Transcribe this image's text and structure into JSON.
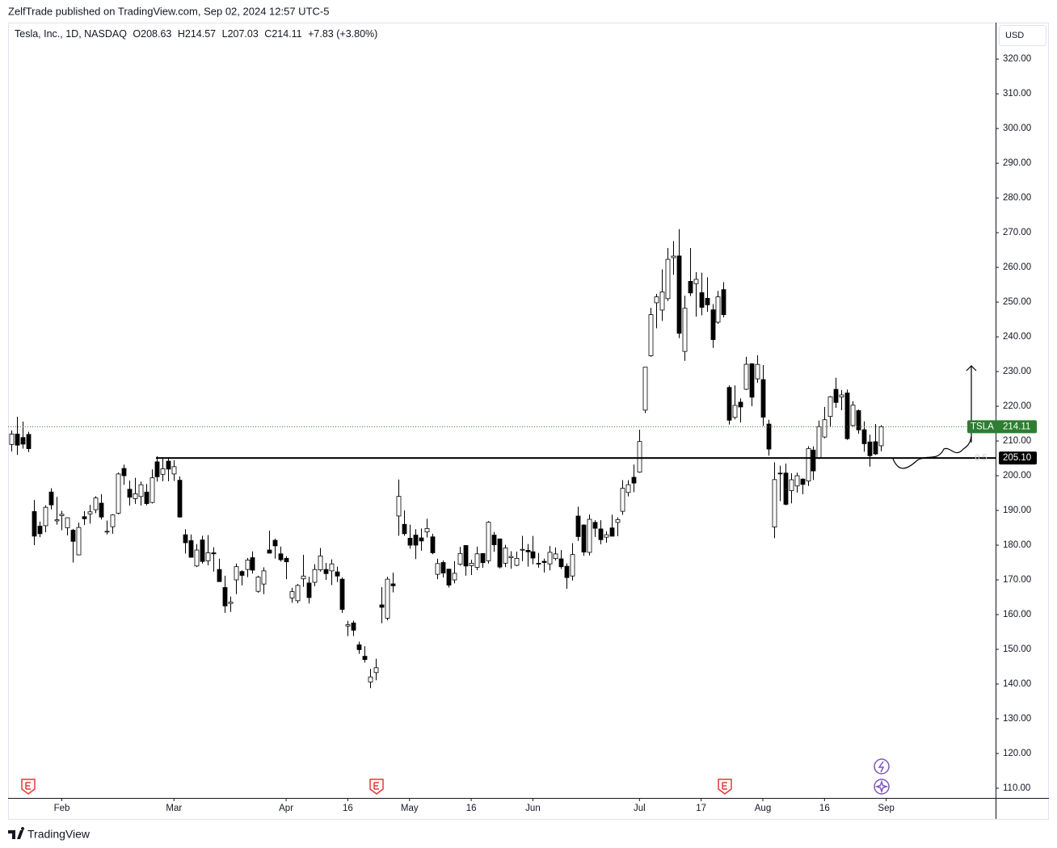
{
  "chart_data": {
    "type": "candlestick",
    "published": "ZelfTrade published on TradingView.com, Sep 02, 2024 12:57 UTC-5",
    "symbol_title": "Tesla, Inc., 1D, NASDAQ",
    "ohlc_legend": [
      {
        "label": "O",
        "value": "208.63"
      },
      {
        "label": "H",
        "value": "214.57"
      },
      {
        "label": "L",
        "value": "207.03"
      },
      {
        "label": "C",
        "value": "214.11"
      }
    ],
    "change": "+7.83 (+3.80%)",
    "currency": "USD",
    "brand": "TradingView",
    "open": [
      209,
      212,
      211,
      211.9,
      189.7,
      185.5,
      185.6,
      195.3,
      187,
      188.5,
      185,
      184.3,
      177.2,
      188.2,
      189,
      190.2,
      192.1,
      183.9,
      185.3,
      189.2,
      202.1,
      196.1,
      193.4,
      194,
      195.3,
      192.3,
      204,
      200.4,
      204.2,
      200.5,
      198.7,
      183,
      181.3,
      174,
      181.5,
      175.5,
      177.8,
      173,
      167.8,
      163.2,
      170,
      172.4,
      173,
      176.4,
      166.7,
      168.8,
      178.6,
      181.4,
      177.5,
      176.2,
      164.8,
      164,
      170.3,
      169.1,
      169.3,
      172.9,
      173,
      172.6,
      172.3,
      170.2,
      156.7,
      157.6,
      151.3,
      148,
      140.6,
      143.3,
      162.8,
      158.96,
      168.85,
      188.4,
      186,
      182,
      182.9,
      182.1,
      183.8,
      182.4,
      171.6,
      175,
      173.1,
      170,
      174.5,
      179.9,
      174.1,
      173.6,
      177.6,
      175.5,
      182.9,
      181.8,
      174.8,
      176.4,
      174.2,
      178.6,
      178.5,
      178.1,
      174.78,
      175.35,
      174.6,
      176.13,
      176.06,
      173.92,
      171.12,
      188.39,
      185.8,
      177.92,
      186.56,
      184.68,
      182.3,
      184.97,
      186.54,
      189.75,
      195.17,
      199.55,
      201.02,
      218.89,
      234.56,
      249.81,
      247.71,
      251,
      262.8,
      263.3,
      235.8,
      255.97,
      255.31,
      252.73,
      251.09,
      247.79,
      244.21,
      253.6,
      225.42,
      216.8,
      221.19,
      224.9,
      232.25,
      227.9,
      227.69,
      214.88,
      185.22,
      200.75,
      200.77,
      195.7,
      197.05,
      199.02,
      198.47,
      207.39,
      205.02,
      211.15,
      217.07,
      224.88,
      222.67,
      223.82,
      214.46,
      218.75,
      213.25,
      209.72,
      209.8,
      208.63
    ],
    "high": [
      213,
      217,
      215.6,
      212.7,
      193,
      186.8,
      191.5,
      196.4,
      193.9,
      189.9,
      187.3,
      184.7,
      186.5,
      189.8,
      191.6,
      194.1,
      194.7,
      187.1,
      188.9,
      200.9,
      203.2,
      198.6,
      199.4,
      198.3,
      197.6,
      201.8,
      205.6,
      205.3,
      205.3,
      204.5,
      199.8,
      184.6,
      183.1,
      180.3,
      182.7,
      182.9,
      179.4,
      176.1,
      171.2,
      165.2,
      174.7,
      172.8,
      176.3,
      178.2,
      171.2,
      173.6,
      184.2,
      181.9,
      179.6,
      176.8,
      167.7,
      168.8,
      177.2,
      170.9,
      174.5,
      179.2,
      174.9,
      175.9,
      173.8,
      170.7,
      158.2,
      158.3,
      152.2,
      150.9,
      144.4,
      147.3,
      167.9,
      170.9,
      172.1,
      198.9,
      190,
      185.9,
      184.6,
      184.8,
      187.6,
      183.3,
      176.1,
      175.6,
      173.1,
      175.4,
      179.5,
      179.99,
      175.8,
      179.6,
      177.6,
      186.9,
      183.8,
      181.9,
      180.1,
      178.25,
      178.15,
      182.67,
      180.32,
      182.64,
      177.76,
      176.15,
      179.73,
      179.35,
      178.57,
      174.75,
      180.55,
      191.08,
      186,
      188.81,
      187.2,
      187.2,
      183.95,
      188.8,
      188,
      198.72,
      198.72,
      203.2,
      213.23,
      231.3,
      248.35,
      252.37,
      259.44,
      265.61,
      267.59,
      271,
      251.84,
      265.6,
      258.62,
      258.47,
      257.14,
      249.44,
      253.21,
      255.76,
      225.99,
      226,
      222.28,
      234.27,
      232.41,
      234.68,
      231.87,
      216.13,
      203.88,
      202.9,
      203.49,
      200.7,
      200.88,
      199.26,
      208.49,
      208.44,
      215.88,
      219.8,
      222.98,
      228.22,
      224.66,
      224.8,
      221.48,
      219.09,
      215.66,
      211.84,
      214.89,
      214.57
    ],
    "low": [
      207,
      206,
      207.8,
      206.8,
      180,
      182.3,
      183.7,
      190.3,
      185.9,
      184.3,
      182.8,
      175,
      177.1,
      185.8,
      186.2,
      189.2,
      187.4,
      183.1,
      183.3,
      188.9,
      197.4,
      191.4,
      191.9,
      191.4,
      191.5,
      192,
      198.3,
      198.4,
      198.4,
      198.5,
      187.9,
      177.6,
      176.5,
      173.7,
      174.7,
      174.2,
      172.4,
      169.5,
      160.5,
      160.8,
      165.9,
      168.4,
      170.8,
      171.8,
      166.3,
      165.9,
      177.6,
      176.1,
      175.3,
      170.2,
      163.4,
      163.3,
      168,
      163.2,
      168.2,
      172.4,
      170,
      168.5,
      169.4,
      160.5,
      153.8,
      153.8,
      148.7,
      146.2,
      138.8,
      141.1,
      157.5,
      158.4,
      166.4,
      182.7,
      182.7,
      179,
      176,
      178.4,
      182.2,
      177.4,
      170.2,
      170.7,
      167.8,
      169,
      174.1,
      171.2,
      171.4,
      172.8,
      173.5,
      174.7,
      178.1,
      173.3,
      173.7,
      173.2,
      173.93,
      175.38,
      173.82,
      174.49,
      173.52,
      172.13,
      172.73,
      175.58,
      173.17,
      167.41,
      169.8,
      181.23,
      176.92,
      177,
      182.37,
      180.28,
      180.69,
      182.55,
      182.6,
      188.77,
      194.05,
      195.26,
      200.85,
      218.06,
      234.25,
      242.46,
      244.57,
      250.3,
      257.86,
      239.65,
      233.09,
      251.73,
      245.8,
      246.18,
      247.2,
      236.83,
      243.75,
      245.63,
      214.71,
      216.23,
      215.33,
      224.7,
      220,
      226.79,
      214.33,
      205.78,
      182,
      192.67,
      191.48,
      192.04,
      195.11,
      194.67,
      197.06,
      198.75,
      204.82,
      210.8,
      214.09,
      219.56,
      218.86,
      210.32,
      214.21,
      212.11,
      206.94,
      202.59,
      205.97,
      207.03
    ],
    "close": [
      212,
      208.8,
      209.1,
      207.8,
      182.6,
      183.3,
      190.9,
      191.6,
      187.3,
      188.9,
      187.9,
      181.1,
      185.1,
      187.6,
      189.6,
      193.6,
      188.1,
      184,
      188.7,
      200.5,
      200,
      193.8,
      194.8,
      197.4,
      191.97,
      199.4,
      199.7,
      202,
      201.9,
      202.6,
      188.1,
      180.7,
      176.5,
      178.6,
      175.3,
      177.8,
      177.5,
      169.5,
      162.5,
      163.6,
      173.8,
      171.3,
      175.7,
      172.8,
      170.8,
      172.6,
      177.7,
      179.8,
      175.8,
      175.2,
      166.6,
      168.4,
      171.1,
      164.9,
      172.98,
      176.9,
      171.8,
      174.6,
      171.1,
      161.5,
      157.1,
      155.5,
      149.9,
      147.05,
      142.05,
      144.7,
      162.1,
      170.2,
      168.3,
      194.05,
      183.3,
      179.99,
      180,
      181.2,
      184.8,
      177.8,
      174.7,
      171.97,
      168.5,
      171.9,
      177.6,
      173.99,
      174.8,
      177.5,
      174.95,
      186.6,
      180.1,
      173.7,
      179.2,
      176.75,
      176.19,
      178.79,
      178.08,
      176.29,
      174.77,
      175,
      177.94,
      177.48,
      173.79,
      170.66,
      177.29,
      182.47,
      178.01,
      187.44,
      184.86,
      181.57,
      183.01,
      182.58,
      187.35,
      196.37,
      197.42,
      197.88,
      209.86,
      231.26,
      246.39,
      251.52,
      252.94,
      262.33,
      263.26,
      241.03,
      248.23,
      252.64,
      256.56,
      248.5,
      249.23,
      239.2,
      251.51,
      246.38,
      215.99,
      220.25,
      219.8,
      232.1,
      222.62,
      232.07,
      216.86,
      207.67,
      198.88,
      200.64,
      191.76,
      198.84,
      200,
      197.49,
      207.83,
      201.38,
      214.14,
      216.12,
      222.72,
      221.1,
      223.27,
      210.66,
      220.32,
      213.21,
      209.21,
      205.75,
      206.28,
      214.11
    ],
    "up_color": "#ffffff",
    "down_color": "#000000",
    "outline_color": "#000000",
    "ylim": [
      107.2,
      330.5
    ],
    "yticks": [
      {
        "value": 110,
        "label": "110.00"
      },
      {
        "value": 120,
        "label": "120.00"
      },
      {
        "value": 130,
        "label": "130.00"
      },
      {
        "value": 140,
        "label": "140.00"
      },
      {
        "value": 150,
        "label": "150.00"
      },
      {
        "value": 160,
        "label": "160.00"
      },
      {
        "value": 170,
        "label": "170.00"
      },
      {
        "value": 180,
        "label": "180.00"
      },
      {
        "value": 190,
        "label": "190.00"
      },
      {
        "value": 200,
        "label": "200.00"
      },
      {
        "value": 210,
        "label": "210.00"
      },
      {
        "value": 220,
        "label": "220.00"
      },
      {
        "value": 230,
        "label": "230.00"
      },
      {
        "value": 240,
        "label": "240.00"
      },
      {
        "value": 250,
        "label": "250.00"
      },
      {
        "value": 260,
        "label": "260.00"
      },
      {
        "value": 270,
        "label": "270.00"
      },
      {
        "value": 280,
        "label": "280.00"
      },
      {
        "value": 290,
        "label": "290.00"
      },
      {
        "value": 300,
        "label": "300.00"
      },
      {
        "value": 310,
        "label": "310.00"
      },
      {
        "value": 320,
        "label": "320.00"
      }
    ],
    "xlim": [
      -0.58,
      175.5
    ],
    "xticks": [
      {
        "value": 9,
        "label": "Feb"
      },
      {
        "value": 29,
        "label": "Mar"
      },
      {
        "value": 49,
        "label": "Apr"
      },
      {
        "value": 60,
        "label": "16"
      },
      {
        "value": 71,
        "label": "May"
      },
      {
        "value": 82,
        "label": "16"
      },
      {
        "value": 93,
        "label": "Jun"
      },
      {
        "value": 112,
        "label": "Jul"
      },
      {
        "value": 123,
        "label": "17"
      },
      {
        "value": 134,
        "label": "Aug"
      },
      {
        "value": 145,
        "label": "16"
      },
      {
        "value": 156,
        "label": "Sep"
      }
    ],
    "grid": false,
    "last_price": {
      "symbol": "TSLA",
      "value": 214.11,
      "color": "#2e7d32"
    },
    "level_line": {
      "value": 205.1,
      "label": "205.10",
      "color": "#000000"
    },
    "fib_label": "0.5"
  }
}
